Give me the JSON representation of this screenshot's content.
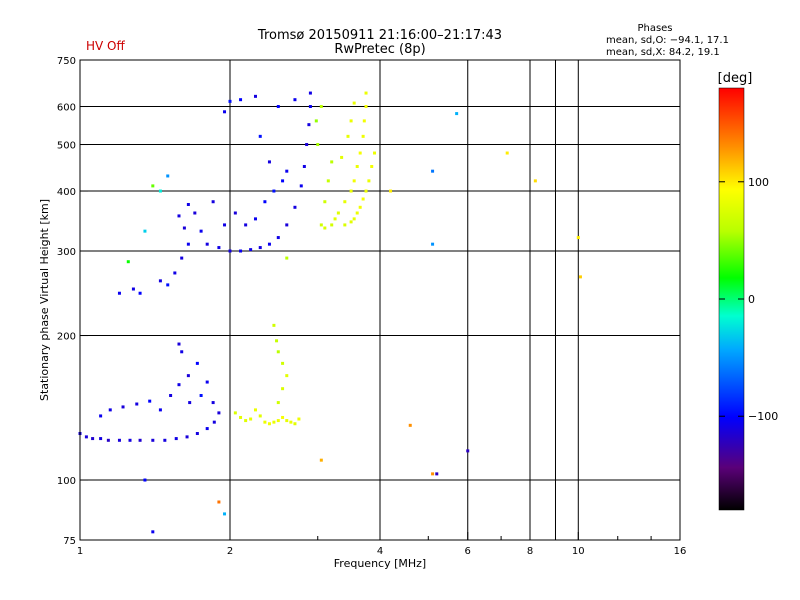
{
  "status_label": "HV Off",
  "status_color": "#cc0000",
  "title_line1": "Tromsø 20150911 21:16:00–21:17:43",
  "title_line2": "RwPretec (8p)",
  "stats": {
    "heading": "Phases",
    "line_o": "mean, sd,O: −94.1, 17.1",
    "line_x": "mean, sd,X:  84.2, 19.1"
  },
  "colorbar": {
    "label": "[deg]",
    "range": [
      -180,
      180
    ],
    "ticks": [
      {
        "value": 100,
        "label": "100"
      },
      {
        "value": 0,
        "label": "0"
      },
      {
        "value": -100,
        "label": "−100"
      }
    ]
  },
  "chart_data": {
    "type": "scatter",
    "title": "Tromsø 20150911 21:16:00–21:17:43",
    "subtitle": "RwPretec (8p)",
    "xlabel": "Frequency [MHz]",
    "ylabel": "Stationary phase Virtual Height [km]",
    "x_scale": "log",
    "y_scale": "log",
    "xlim": [
      1,
      16
    ],
    "ylim": [
      75,
      750
    ],
    "x_ticks": [
      {
        "value": 1,
        "label": "1"
      },
      {
        "value": 2,
        "label": "2"
      },
      {
        "value": 4,
        "label": "4"
      },
      {
        "value": 6,
        "label": "6"
      },
      {
        "value": 8,
        "label": "8"
      },
      {
        "value": 10,
        "label": "10"
      },
      {
        "value": 16,
        "label": "16"
      }
    ],
    "x_gridlines": [
      2,
      4,
      6,
      8,
      9,
      10
    ],
    "y_ticks": [
      {
        "value": 75,
        "label": "75"
      },
      {
        "value": 100,
        "label": "100"
      },
      {
        "value": 200,
        "label": "200"
      },
      {
        "value": 300,
        "label": "300"
      },
      {
        "value": 400,
        "label": "400"
      },
      {
        "value": 500,
        "label": "500"
      },
      {
        "value": 600,
        "label": "600"
      },
      {
        "value": 750,
        "label": "750"
      }
    ],
    "y_gridlines": [
      100,
      200,
      300,
      400,
      500,
      600
    ],
    "color_encoding": "phase in degrees (colorbar)",
    "series": [
      {
        "description": "O-mode E-layer trace",
        "points": [
          [
            1.0,
            125,
            -110
          ],
          [
            1.03,
            123,
            -112
          ],
          [
            1.06,
            122,
            -115
          ],
          [
            1.1,
            122,
            -110
          ],
          [
            1.14,
            121,
            -118
          ],
          [
            1.2,
            121,
            -112
          ],
          [
            1.26,
            121,
            -110
          ],
          [
            1.32,
            121,
            -115
          ],
          [
            1.4,
            121,
            -112
          ],
          [
            1.48,
            121,
            -110
          ],
          [
            1.56,
            122,
            -108
          ],
          [
            1.64,
            123,
            -112
          ],
          [
            1.72,
            125,
            -110
          ],
          [
            1.8,
            128,
            -105
          ],
          [
            1.86,
            132,
            -110
          ],
          [
            1.9,
            138,
            -112
          ],
          [
            1.1,
            136,
            -105
          ],
          [
            1.15,
            140,
            -108
          ],
          [
            1.22,
            142,
            -112
          ],
          [
            1.3,
            144,
            -110
          ],
          [
            1.38,
            146,
            -100
          ],
          [
            1.45,
            140,
            -105
          ],
          [
            1.52,
            150,
            -110
          ],
          [
            1.58,
            158,
            -108
          ],
          [
            1.65,
            165,
            -112
          ],
          [
            1.72,
            175,
            -100
          ],
          [
            1.6,
            185,
            -108
          ],
          [
            1.58,
            192,
            -112
          ],
          [
            1.66,
            145,
            -110
          ],
          [
            1.75,
            150,
            -95
          ],
          [
            1.8,
            160,
            -105
          ],
          [
            1.85,
            145,
            -110
          ]
        ]
      },
      {
        "description": "X-mode E-layer trace",
        "points": [
          [
            2.05,
            138,
            75
          ],
          [
            2.1,
            135,
            80
          ],
          [
            2.15,
            133,
            78
          ],
          [
            2.2,
            134,
            82
          ],
          [
            2.25,
            140,
            85
          ],
          [
            2.3,
            136,
            80
          ],
          [
            2.35,
            132,
            85
          ],
          [
            2.4,
            131,
            88
          ],
          [
            2.45,
            132,
            84
          ],
          [
            2.5,
            133,
            86
          ],
          [
            2.55,
            135,
            90
          ],
          [
            2.6,
            133,
            82
          ],
          [
            2.65,
            132,
            85
          ],
          [
            2.7,
            131,
            80
          ],
          [
            2.75,
            134,
            86
          ],
          [
            2.5,
            145,
            70
          ],
          [
            2.55,
            155,
            75
          ],
          [
            2.6,
            165,
            80
          ],
          [
            2.55,
            175,
            70
          ],
          [
            2.5,
            185,
            60
          ],
          [
            2.48,
            195,
            65
          ],
          [
            2.45,
            210,
            70
          ]
        ]
      },
      {
        "description": "O-mode F-layer trace",
        "points": [
          [
            1.2,
            245,
            -105
          ],
          [
            1.28,
            250,
            -108
          ],
          [
            1.32,
            245,
            -100
          ],
          [
            1.45,
            260,
            -110
          ],
          [
            1.5,
            255,
            -95
          ],
          [
            1.55,
            270,
            -108
          ],
          [
            1.6,
            290,
            -110
          ],
          [
            1.65,
            310,
            -105
          ],
          [
            1.62,
            335,
            -112
          ],
          [
            1.58,
            355,
            -110
          ],
          [
            1.65,
            375,
            -108
          ],
          [
            1.7,
            360,
            -112
          ],
          [
            1.75,
            330,
            -105
          ],
          [
            1.8,
            310,
            -110
          ],
          [
            1.9,
            305,
            -108
          ],
          [
            2.0,
            300,
            -110
          ],
          [
            2.1,
            300,
            -105
          ],
          [
            2.2,
            302,
            -108
          ],
          [
            2.3,
            305,
            -110
          ],
          [
            2.4,
            310,
            -105
          ],
          [
            2.5,
            320,
            -108
          ],
          [
            2.6,
            340,
            -112
          ],
          [
            2.7,
            370,
            -110
          ],
          [
            2.78,
            410,
            -105
          ],
          [
            2.82,
            450,
            -108
          ],
          [
            2.85,
            500,
            -112
          ],
          [
            2.88,
            550,
            -110
          ],
          [
            2.9,
            600,
            -105
          ],
          [
            2.9,
            640,
            -108
          ],
          [
            1.85,
            380,
            -110
          ],
          [
            1.95,
            340,
            -108
          ],
          [
            2.05,
            360,
            -112
          ],
          [
            2.15,
            340,
            -110
          ],
          [
            2.25,
            350,
            -105
          ],
          [
            2.35,
            380,
            -100
          ],
          [
            2.45,
            400,
            -95
          ],
          [
            2.55,
            420,
            -100
          ],
          [
            2.6,
            440,
            -105
          ],
          [
            2.4,
            460,
            -110
          ],
          [
            2.3,
            520,
            -95
          ],
          [
            2.25,
            630,
            -110
          ],
          [
            2.1,
            620,
            -100
          ],
          [
            2.0,
            615,
            -95
          ],
          [
            1.95,
            585,
            -105
          ],
          [
            2.7,
            620,
            -105
          ],
          [
            2.5,
            600,
            -100
          ]
        ]
      },
      {
        "description": "X-mode F-layer trace",
        "points": [
          [
            3.05,
            340,
            70
          ],
          [
            3.1,
            335,
            75
          ],
          [
            3.2,
            340,
            72
          ],
          [
            3.25,
            350,
            80
          ],
          [
            3.3,
            360,
            78
          ],
          [
            3.4,
            380,
            82
          ],
          [
            3.5,
            400,
            85
          ],
          [
            3.55,
            420,
            88
          ],
          [
            3.6,
            450,
            84
          ],
          [
            3.65,
            480,
            90
          ],
          [
            3.7,
            520,
            86
          ],
          [
            3.72,
            560,
            88
          ],
          [
            3.75,
            600,
            90
          ],
          [
            3.75,
            640,
            85
          ],
          [
            3.4,
            340,
            75
          ],
          [
            3.5,
            345,
            80
          ],
          [
            3.55,
            350,
            82
          ],
          [
            3.6,
            360,
            85
          ],
          [
            3.65,
            370,
            88
          ],
          [
            3.7,
            385,
            90
          ],
          [
            3.75,
            400,
            86
          ],
          [
            3.8,
            420,
            84
          ],
          [
            3.85,
            450,
            88
          ],
          [
            3.9,
            480,
            85
          ],
          [
            3.1,
            380,
            70
          ],
          [
            3.15,
            420,
            65
          ],
          [
            3.2,
            460,
            60
          ],
          [
            3.0,
            500,
            55
          ],
          [
            2.98,
            560,
            50
          ],
          [
            3.05,
            600,
            60
          ],
          [
            3.35,
            470,
            80
          ],
          [
            3.45,
            520,
            82
          ],
          [
            3.5,
            560,
            85
          ],
          [
            3.55,
            610,
            84
          ]
        ]
      },
      {
        "description": "scattered points",
        "points": [
          [
            1.25,
            285,
            20
          ],
          [
            1.35,
            330,
            -30
          ],
          [
            1.4,
            410,
            40
          ],
          [
            1.45,
            400,
            -20
          ],
          [
            1.5,
            430,
            -50
          ],
          [
            1.35,
            100,
            -100
          ],
          [
            1.4,
            78,
            -105
          ],
          [
            1.9,
            90,
            140
          ],
          [
            1.95,
            85,
            -40
          ],
          [
            2.6,
            290,
            60
          ],
          [
            4.2,
            400,
            100
          ],
          [
            4.6,
            130,
            130
          ],
          [
            5.1,
            103,
            130
          ],
          [
            5.2,
            103,
            -120
          ],
          [
            5.1,
            310,
            -50
          ],
          [
            5.1,
            440,
            -60
          ],
          [
            5.7,
            580,
            -40
          ],
          [
            6.0,
            115,
            -120
          ],
          [
            7.2,
            480,
            100
          ],
          [
            8.2,
            420,
            105
          ],
          [
            10.0,
            320,
            100
          ],
          [
            10.1,
            265,
            110
          ],
          [
            3.05,
            110,
            120
          ]
        ]
      }
    ]
  }
}
